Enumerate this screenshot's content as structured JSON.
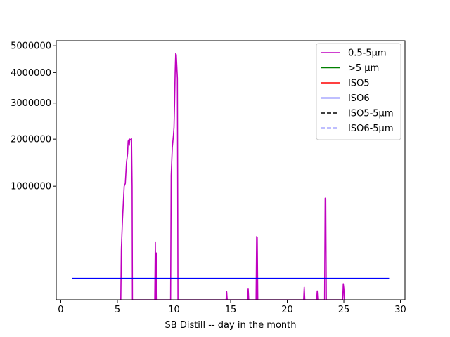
{
  "chart_data": {
    "type": "line",
    "title": "",
    "xlabel": "SB Distill -- day in the month",
    "ylabel": "",
    "y_scale": "sqrt",
    "xlim": [
      -0.4,
      30.4
    ],
    "ylim": [
      0,
      5200000
    ],
    "grid": false,
    "legend_position": "top-right",
    "x_ticks": [
      0,
      5,
      10,
      15,
      20,
      25,
      30
    ],
    "x_tick_labels": [
      "0",
      "5",
      "10",
      "15",
      "20",
      "25",
      "30"
    ],
    "y_ticks": [
      1000000,
      2000000,
      3000000,
      4000000,
      5000000
    ],
    "y_tick_labels": [
      "1000000",
      "2000000",
      "3000000",
      "4000000",
      "5000000"
    ],
    "series": [
      {
        "name": "0.5-5µm",
        "color": "#bf00bf",
        "dash": "solid",
        "points": [
          [
            5.3,
            0
          ],
          [
            5.35,
            200000
          ],
          [
            5.45,
            500000
          ],
          [
            5.6,
            1000000
          ],
          [
            5.7,
            1050000
          ],
          [
            5.8,
            1450000
          ],
          [
            5.9,
            1650000
          ],
          [
            5.95,
            1950000
          ],
          [
            6.0,
            1980000
          ],
          [
            6.05,
            1850000
          ],
          [
            6.1,
            2000000
          ],
          [
            6.2,
            1980000
          ],
          [
            6.25,
            2010000
          ],
          [
            6.3,
            1000000
          ],
          [
            6.33,
            0
          ],
          [
            8.3,
            0
          ],
          [
            8.35,
            260000
          ],
          [
            8.4,
            0
          ],
          [
            8.45,
            170000
          ],
          [
            8.5,
            0
          ],
          [
            9.7,
            0
          ],
          [
            9.75,
            1200000
          ],
          [
            9.85,
            1800000
          ],
          [
            9.95,
            2100000
          ],
          [
            10.0,
            2300000
          ],
          [
            10.05,
            3000000
          ],
          [
            10.1,
            4000000
          ],
          [
            10.15,
            4700000
          ],
          [
            10.2,
            4650000
          ],
          [
            10.3,
            3800000
          ],
          [
            10.35,
            0
          ],
          [
            14.6,
            0
          ],
          [
            14.65,
            5000
          ],
          [
            14.7,
            0
          ],
          [
            16.5,
            0
          ],
          [
            16.55,
            10000
          ],
          [
            16.6,
            0
          ],
          [
            17.25,
            0
          ],
          [
            17.3,
            310000
          ],
          [
            17.35,
            300000
          ],
          [
            17.4,
            0
          ],
          [
            21.45,
            0
          ],
          [
            21.5,
            12000
          ],
          [
            21.55,
            0
          ],
          [
            22.6,
            0
          ],
          [
            22.65,
            6000
          ],
          [
            22.7,
            0
          ],
          [
            23.3,
            0
          ],
          [
            23.35,
            800000
          ],
          [
            23.4,
            780000
          ],
          [
            23.45,
            0
          ],
          [
            24.9,
            0
          ],
          [
            24.95,
            20000
          ],
          [
            25.0,
            10000
          ],
          [
            25.05,
            0
          ]
        ]
      },
      {
        "name": ">5 µm",
        "color": "#008000",
        "dash": "solid",
        "points": []
      },
      {
        "name": "ISO5",
        "color": "#ff0000",
        "dash": "solid",
        "points": []
      },
      {
        "name": "ISO6",
        "color": "#0000ff",
        "dash": "solid",
        "points": [
          [
            1,
            35200
          ],
          [
            29,
            35200
          ]
        ]
      },
      {
        "name": "ISO5-5µm",
        "color": "#000000",
        "dash": "dashed",
        "points": []
      },
      {
        "name": "ISO6-5µm",
        "color": "#0000ff",
        "dash": "dashed",
        "points": []
      }
    ]
  }
}
